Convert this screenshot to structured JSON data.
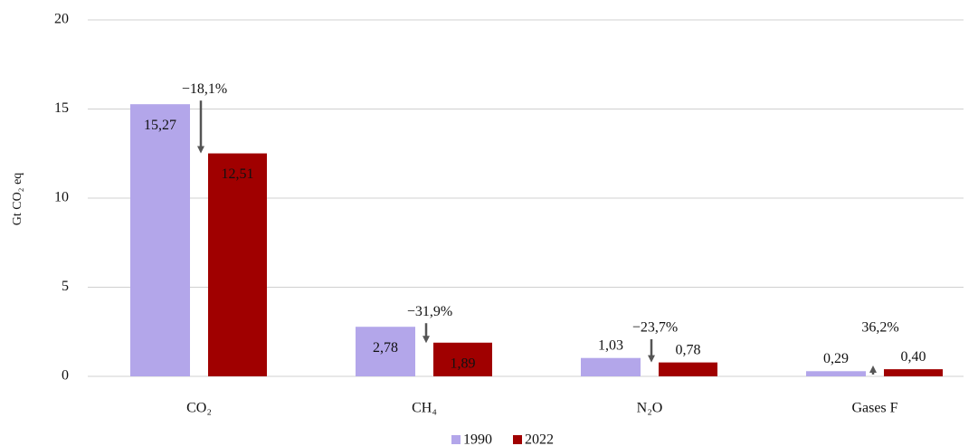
{
  "chart_data": {
    "type": "bar",
    "y_label": "Gt CO₂ eq",
    "categories": [
      "CO₂",
      "CH₄",
      "N₂O",
      "Gases F"
    ],
    "series": [
      {
        "name": "1990",
        "color": "#b3a6ea",
        "values": [
          15.27,
          2.78,
          1.03,
          0.29
        ],
        "value_labels": [
          "15,27",
          "2,78",
          "1,03",
          "0,29"
        ]
      },
      {
        "name": "2022",
        "color": "#a00000",
        "values": [
          12.51,
          1.89,
          0.78,
          0.4
        ],
        "value_labels": [
          "12,51",
          "1,89",
          "0,78",
          "0,40"
        ]
      }
    ],
    "annotations": [
      "−18,1%",
      "−31,9%",
      "−23,7%",
      "36,2%"
    ],
    "ylim": [
      0,
      20
    ],
    "yticks": [
      0,
      5,
      10,
      15,
      20
    ],
    "grid": true
  }
}
